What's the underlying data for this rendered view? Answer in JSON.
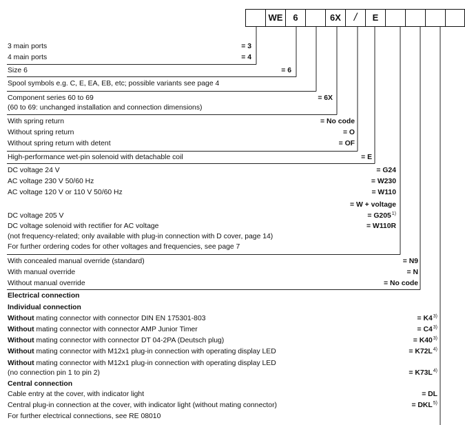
{
  "header_boxes": [
    "",
    "WE",
    "6",
    "",
    "6X",
    "",
    "E",
    "",
    "",
    "",
    "",
    ""
  ],
  "header_slash": "/",
  "rows": [
    {
      "text": "3 main ports",
      "code": "= 3"
    },
    {
      "text": "4 main ports",
      "code": "= 4"
    },
    {
      "text": "Size 6",
      "code": "= 6"
    },
    {
      "text": "Spool symbols e.g. C, E, EA, EB, etc; possible variants see page 4",
      "code": ""
    },
    {
      "text": "Component series 60 to 69",
      "code": "= 6X"
    },
    {
      "text": "(60 to 69: unchanged installation and connection dimensions)",
      "code": ""
    },
    {
      "text": "With spring return",
      "code": "= No code"
    },
    {
      "text": "Without spring return",
      "code": "= O"
    },
    {
      "text": "Without spring return with detent",
      "code": "= OF"
    },
    {
      "text": "High-performance wet-pin solenoid with detachable coil",
      "code": "= E"
    },
    {
      "text": "DC voltage 24 V",
      "code": "= G24"
    },
    {
      "text": "AC voltage 230 V 50/60 Hz",
      "code": "= W230"
    },
    {
      "text": "AC voltage 120 V or 110 V 50/60 Hz",
      "code": "= W110"
    },
    {
      "text": "",
      "code": "= W + voltage"
    },
    {
      "text": "DC voltage 205 V",
      "code": "= G205",
      "sup": "1)"
    },
    {
      "text": "DC voltage solenoid with rectifier for AC voltage",
      "code": "= W110R"
    },
    {
      "text": "(not frequency-related; only available with plug-in connection with D cover, page 14)",
      "code": ""
    },
    {
      "text": "For further ordering codes for other voltages and frequencies, see page 7",
      "code": ""
    },
    {
      "text": "With concealed manual override (standard)",
      "code": "= N9"
    },
    {
      "text": "With manual override",
      "code": "= N"
    },
    {
      "text": "Without manual override",
      "code": "= No code"
    },
    {
      "text": "Electrical connection",
      "code": ""
    },
    {
      "text": "Individual connection",
      "code": ""
    },
    {
      "bold": "Without",
      "text": " mating connector with connector DIN EN 175301-803",
      "code": "= K4",
      "sup": "3)"
    },
    {
      "bold": "Without",
      "text": " mating connector with connector AMP Junior Timer",
      "code": "= C4",
      "sup": "3)"
    },
    {
      "bold": "Without",
      "text": " mating connector with connector DT 04-2PA (Deutsch plug)",
      "code": "= K40",
      "sup": "3)"
    },
    {
      "bold": "Without",
      "text": " mating connector with M12x1 plug-in connection with operating display LED",
      "code": "= K72L",
      "sup": "4)"
    },
    {
      "bold": "Without",
      "text": " mating connector with M12x1 plug-in connection with operating display LED",
      "code": ""
    },
    {
      "text": "(no connection pin 1 to pin 2)",
      "code": "= K73L",
      "sup": "4)"
    },
    {
      "text": "Central connection",
      "code": ""
    },
    {
      "text": "Cable entry at the cover, with indicator light",
      "code": "= DL"
    },
    {
      "text": "Central plug-in connection at the cover, with indicator light (without mating connector)",
      "code": "= DKL",
      "sup": "5)"
    },
    {
      "text": "For further electrical connections, see RE 08010",
      "code": ""
    }
  ]
}
